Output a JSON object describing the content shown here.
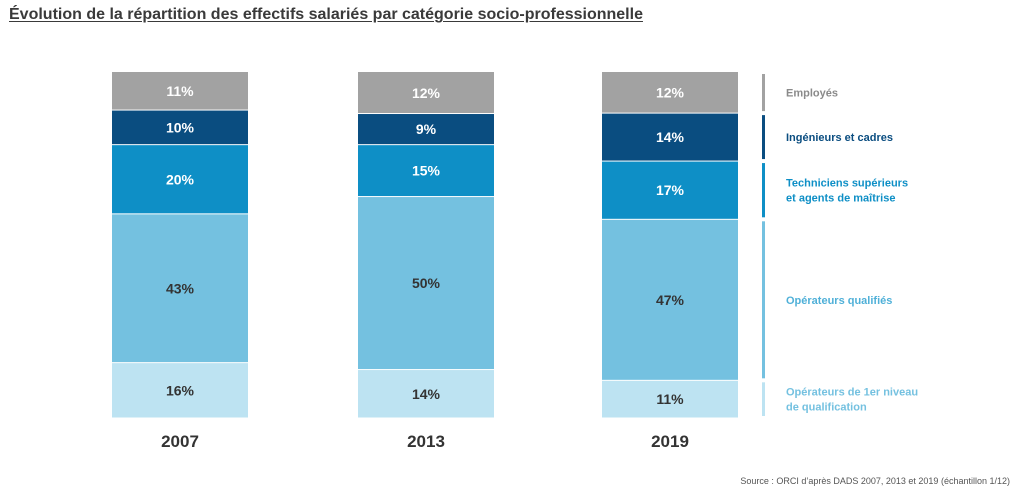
{
  "chart_data": {
    "type": "bar",
    "stacked": true,
    "percent": true,
    "title": "Évolution de la répartition des effectifs salariés par catégorie socio-professionnelle",
    "categories": [
      "2007",
      "2013",
      "2019"
    ],
    "series": [
      {
        "name": "Opérateurs de 1er niveau de qualification",
        "color": "#bde3f2",
        "values": [
          16,
          14,
          11
        ]
      },
      {
        "name": "Opérateurs qualifiés",
        "color": "#74c1e0",
        "values": [
          43,
          50,
          47
        ]
      },
      {
        "name": "Techniciens supérieurs et agents de maîtrise",
        "color": "#0e8fc6",
        "values": [
          20,
          15,
          17
        ]
      },
      {
        "name": "Ingénieurs et cadres",
        "color": "#0a4d80",
        "values": [
          10,
          9,
          14
        ]
      },
      {
        "name": "Employés",
        "color": "#a2a2a2",
        "values": [
          11,
          12,
          12
        ]
      }
    ],
    "legend_placement": "right",
    "grid": false
  },
  "legend": [
    {
      "lines": [
        "Employés"
      ],
      "color": "#8a8a8a",
      "bar_color": "#a2a2a2"
    },
    {
      "lines": [
        "Ingénieurs et cadres"
      ],
      "color": "#0a4d80",
      "bar_color": "#0a4d80"
    },
    {
      "lines": [
        "Techniciens supérieurs",
        "et agents de maîtrise"
      ],
      "color": "#0e8fc6",
      "bar_color": "#0e8fc6"
    },
    {
      "lines": [
        "Opérateurs qualifiés"
      ],
      "color": "#4fb0d8",
      "bar_color": "#74c1e0"
    },
    {
      "lines": [
        "Opérateurs de 1er niveau",
        "de qualification"
      ],
      "color": "#74c1e0",
      "bar_color": "#bde3f2"
    }
  ],
  "source": "Source : ORCI d’après DADS 2007, 2013 et 2019 (échantillon 1/12)"
}
